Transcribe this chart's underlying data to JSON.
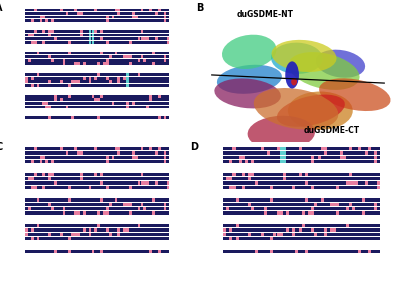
{
  "panel_A_label": "A",
  "panel_B_label": "B",
  "panel_C_label": "C",
  "panel_D_label": "D",
  "protein_NT_label": "duGSDME-NT",
  "protein_CT_label": "duGSDME-CT",
  "bg_color": "#ffffff",
  "seq_bg_dark": "#1a1a5e",
  "seq_highlight_pink": "#e87fa0",
  "seq_highlight_cyan": "#5ecfcf",
  "alignment_rows": 4
}
